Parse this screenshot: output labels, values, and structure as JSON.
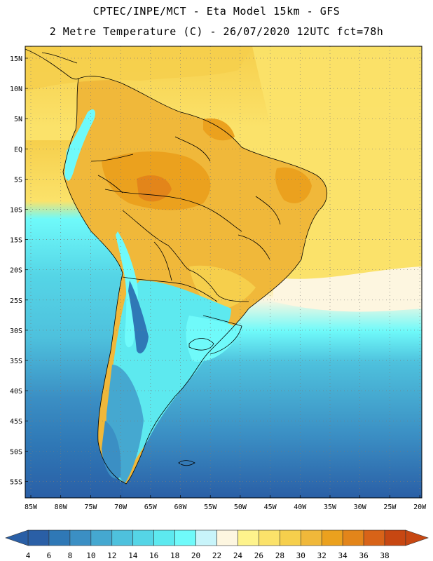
{
  "header": {
    "line1": "CPTEC/INPE/MCT  -  Eta Model 15km  - GFS",
    "line2": "2 Metre Temperature (C) - 26/07/2020 12UTC fct=78h"
  },
  "map": {
    "lat_labels": [
      "15N",
      "10N",
      "5N",
      "EQ",
      "5S",
      "10S",
      "15S",
      "20S",
      "25S",
      "30S",
      "35S",
      "40S",
      "45S",
      "50S",
      "55S"
    ],
    "lon_labels": [
      "85W",
      "80W",
      "75W",
      "70W",
      "65W",
      "60W",
      "55W",
      "50W",
      "45W",
      "40W",
      "35W",
      "30W",
      "25W",
      "20W"
    ]
  },
  "colorbar": {
    "labels": [
      "4",
      "6",
      "8",
      "10",
      "12",
      "14",
      "16",
      "18",
      "20",
      "22",
      "24",
      "26",
      "28",
      "30",
      "32",
      "34",
      "36",
      "38"
    ],
    "colors": [
      "#2a5fa6",
      "#2f78b6",
      "#3b8fc4",
      "#45a8d0",
      "#4ec1dd",
      "#55d5e6",
      "#5de9ef",
      "#6ffafa",
      "#c8f4fa",
      "#fdf6e0",
      "#fef38c",
      "#fbe26a",
      "#f6cf4c",
      "#f0b83a",
      "#eba11e",
      "#e3851a",
      "#d86318",
      "#c74712"
    ]
  }
}
